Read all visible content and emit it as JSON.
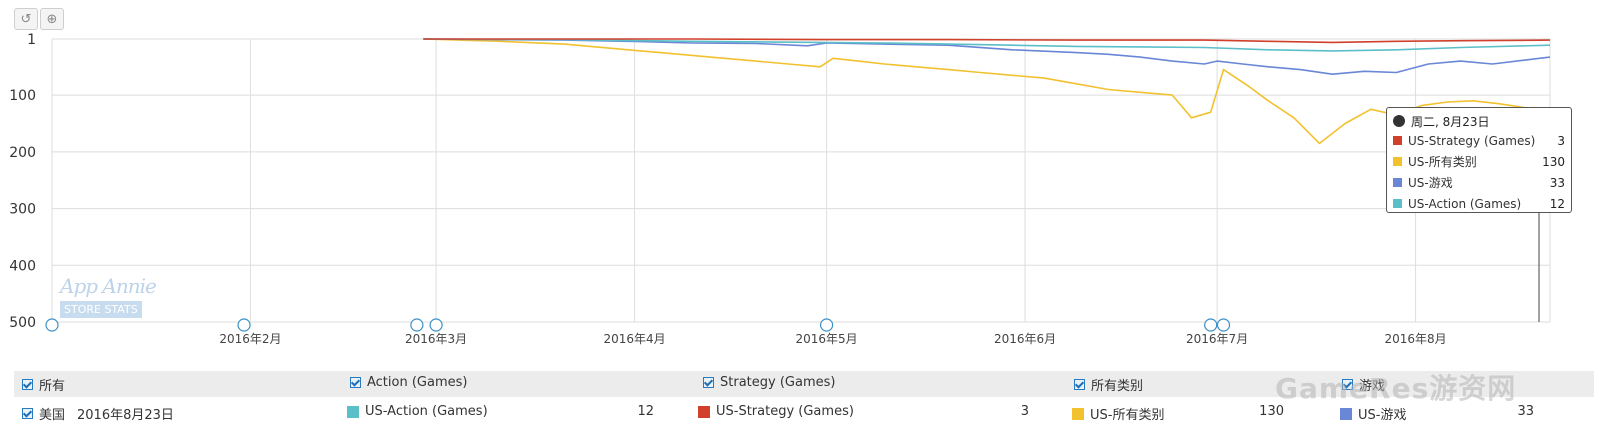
{
  "toolbar": {
    "reset_icon": "reset-icon",
    "zoom_icon": "zoom-icon"
  },
  "watermark": {
    "title": "App Annie",
    "subtitle": "STORE STATS"
  },
  "site_watermark": "GameRes游资网",
  "tooltip": {
    "date": "周二, 8月23日",
    "rows": [
      {
        "label": "US-Strategy (Games)",
        "value": "3",
        "color": "#d0402b"
      },
      {
        "label": "US-所有类别",
        "value": "130",
        "color": "#f2c12e"
      },
      {
        "label": "US-游戏",
        "value": "33",
        "color": "#6a86d6"
      },
      {
        "label": "US-Action (Games)",
        "value": "12",
        "color": "#5bbfc8"
      }
    ]
  },
  "legend": {
    "headers": [
      "所有",
      "Action (Games)",
      "Strategy (Games)",
      "所有类别",
      "游戏"
    ],
    "row": {
      "country": "美国",
      "date": "2016年8月23日",
      "items": [
        {
          "label": "US-Action (Games)",
          "value": "12",
          "color": "#5bbfc8"
        },
        {
          "label": "US-Strategy (Games)",
          "value": "3",
          "color": "#d0402b"
        },
        {
          "label": "US-所有类别",
          "value": "130",
          "color": "#f2c12e"
        },
        {
          "label": "US-游戏",
          "value": "33",
          "color": "#6a86d6"
        }
      ]
    }
  },
  "chart_data": {
    "type": "line",
    "y_inverted": true,
    "ylim": [
      1,
      500
    ],
    "yticks": [
      "1",
      "100",
      "200",
      "300",
      "400",
      "500"
    ],
    "ytick_values": [
      1,
      100,
      200,
      300,
      400,
      500
    ],
    "xlim": [
      0,
      234
    ],
    "xticks": [
      "2016年2月",
      "2016年3月",
      "2016年4月",
      "2016年5月",
      "2016年6月",
      "2016年7月",
      "2016年8月"
    ],
    "xtick_positions": [
      31,
      60,
      91,
      121,
      152,
      182,
      213
    ],
    "event_markers": [
      0,
      30,
      57,
      60,
      121,
      181,
      183
    ],
    "series": [
      {
        "name": "US-Strategy (Games)",
        "color": "#d0402b",
        "points": [
          [
            58,
            1
          ],
          [
            80,
            1
          ],
          [
            100,
            1
          ],
          [
            120,
            2
          ],
          [
            140,
            2
          ],
          [
            160,
            3
          ],
          [
            180,
            3
          ],
          [
            190,
            5
          ],
          [
            200,
            7
          ],
          [
            210,
            5
          ],
          [
            220,
            4
          ],
          [
            234,
            3
          ]
        ]
      },
      {
        "name": "US-Action (Games)",
        "color": "#5bbfc8",
        "points": [
          [
            58,
            1
          ],
          [
            80,
            2
          ],
          [
            100,
            5
          ],
          [
            120,
            7
          ],
          [
            130,
            8
          ],
          [
            140,
            10
          ],
          [
            150,
            12
          ],
          [
            160,
            14
          ],
          [
            170,
            15
          ],
          [
            180,
            16
          ],
          [
            190,
            20
          ],
          [
            200,
            22
          ],
          [
            210,
            20
          ],
          [
            220,
            16
          ],
          [
            234,
            12
          ]
        ]
      },
      {
        "name": "US-游戏",
        "color": "#6a86d6",
        "points": [
          [
            58,
            1
          ],
          [
            80,
            3
          ],
          [
            90,
            5
          ],
          [
            100,
            8
          ],
          [
            110,
            9
          ],
          [
            118,
            13
          ],
          [
            121,
            8
          ],
          [
            130,
            10
          ],
          [
            140,
            12
          ],
          [
            150,
            20
          ],
          [
            160,
            25
          ],
          [
            165,
            28
          ],
          [
            170,
            33
          ],
          [
            175,
            40
          ],
          [
            180,
            45
          ],
          [
            182,
            40
          ],
          [
            186,
            45
          ],
          [
            190,
            50
          ],
          [
            195,
            55
          ],
          [
            200,
            63
          ],
          [
            205,
            58
          ],
          [
            210,
            60
          ],
          [
            215,
            45
          ],
          [
            220,
            40
          ],
          [
            225,
            45
          ],
          [
            234,
            33
          ]
        ]
      },
      {
        "name": "US-所有类别",
        "color": "#f2c12e",
        "points": [
          [
            58,
            1
          ],
          [
            70,
            5
          ],
          [
            80,
            10
          ],
          [
            85,
            15
          ],
          [
            90,
            20
          ],
          [
            95,
            25
          ],
          [
            100,
            30
          ],
          [
            105,
            35
          ],
          [
            110,
            40
          ],
          [
            115,
            45
          ],
          [
            120,
            50
          ],
          [
            122,
            35
          ],
          [
            126,
            40
          ],
          [
            130,
            45
          ],
          [
            135,
            50
          ],
          [
            140,
            55
          ],
          [
            145,
            60
          ],
          [
            150,
            65
          ],
          [
            155,
            70
          ],
          [
            160,
            80
          ],
          [
            165,
            90
          ],
          [
            170,
            95
          ],
          [
            175,
            100
          ],
          [
            178,
            140
          ],
          [
            181,
            130
          ],
          [
            183,
            55
          ],
          [
            185,
            70
          ],
          [
            187,
            85
          ],
          [
            190,
            110
          ],
          [
            194,
            140
          ],
          [
            198,
            185
          ],
          [
            202,
            150
          ],
          [
            206,
            125
          ],
          [
            210,
            135
          ],
          [
            214,
            118
          ],
          [
            218,
            112
          ],
          [
            222,
            110
          ],
          [
            226,
            115
          ],
          [
            230,
            122
          ],
          [
            234,
            130
          ]
        ]
      }
    ]
  }
}
